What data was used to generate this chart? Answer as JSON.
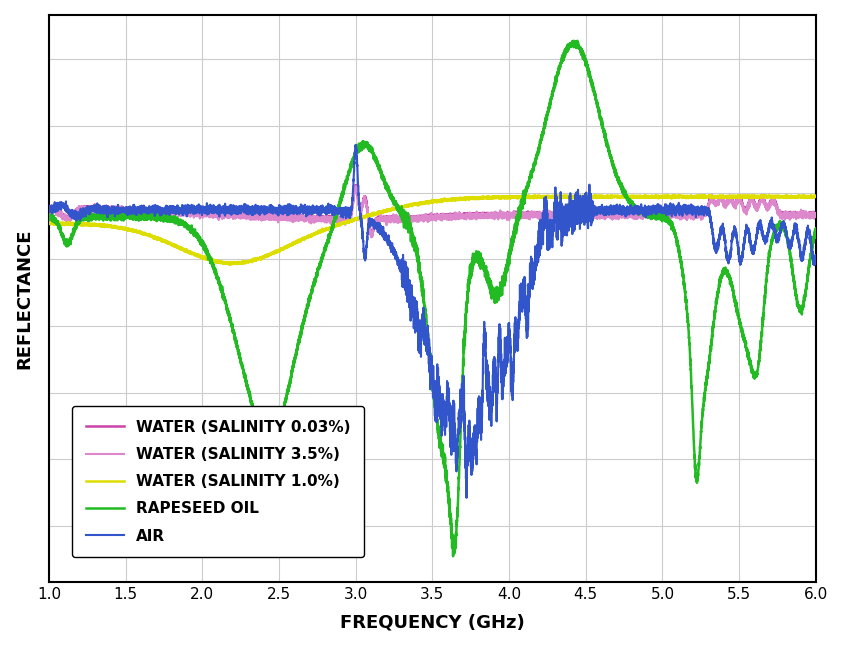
{
  "title": "",
  "xlabel": "FREQUENCY (GHz)",
  "ylabel": "REFLECTANCE",
  "xlim": [
    1.0,
    6.0
  ],
  "xticks": [
    1.0,
    1.5,
    2.0,
    2.5,
    3.0,
    3.5,
    4.0,
    4.5,
    5.0,
    5.5,
    6.0
  ],
  "grid_color": "#cccccc",
  "background": "#ffffff",
  "legend_labels": [
    "AIR",
    "RAPESEED OIL",
    "WATER (SALINITY 0.03%)",
    "WATER (SALINITY 1.0%)",
    "WATER (SALINITY 3.5%)"
  ],
  "line_colors": [
    "#3355cc",
    "#22bb22",
    "#cc44aa",
    "#dddd00",
    "#dd88cc"
  ],
  "line_widths": [
    1.5,
    1.8,
    1.8,
    1.8,
    1.5
  ]
}
